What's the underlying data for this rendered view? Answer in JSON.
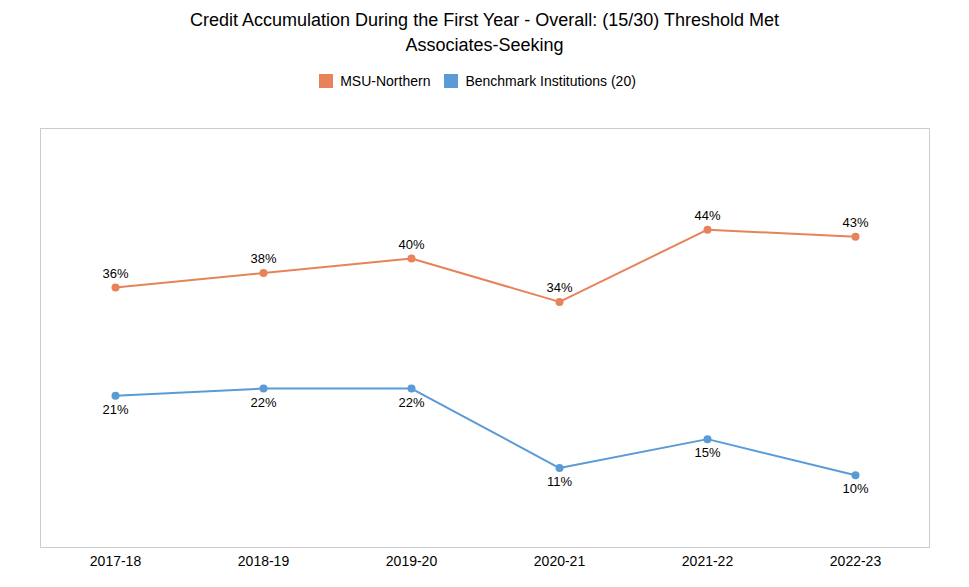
{
  "chart_data": {
    "type": "line",
    "title": "Credit Accumulation During the First Year - Overall: (15/30) Threshold Met",
    "subtitle": "Associates-Seeking",
    "categories": [
      "2017-18",
      "2018-19",
      "2019-20",
      "2020-21",
      "2021-22",
      "2022-23"
    ],
    "series": [
      {
        "name": "MSU-Northern",
        "color": "#E8825A",
        "marker": "circle",
        "values": [
          36,
          38,
          40,
          34,
          44,
          43
        ],
        "value_labels": [
          "36%",
          "38%",
          "40%",
          "34%",
          "44%",
          "43%"
        ]
      },
      {
        "name": "Benchmark Institutions (20)",
        "color": "#5B9BD5",
        "marker": "circle",
        "values": [
          21,
          22,
          22,
          11,
          15,
          10
        ],
        "value_labels": [
          "21%",
          "22%",
          "22%",
          "11%",
          "15%",
          "10%"
        ]
      }
    ],
    "ylim": [
      0,
      58
    ],
    "grid": false,
    "legend": "top",
    "data_labels": true,
    "tick_labels": "x"
  }
}
